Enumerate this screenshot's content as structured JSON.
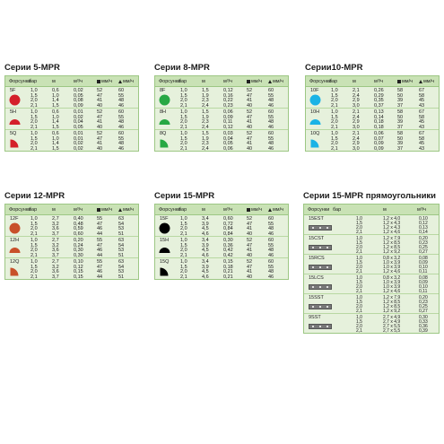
{
  "headers": {
    "nozzle": "Форсунки",
    "bar": "бар",
    "radius": "м",
    "flow": "м³/ч",
    "sq_rate": "мм/ч",
    "tri_rate": "мм/ч",
    "rect_size": "м"
  },
  "colors": {
    "s5": "#d4202a",
    "s8": "#27a844",
    "s10": "#1ab3e6",
    "s12": "#c8502a",
    "s15": "#000000"
  },
  "panels": [
    {
      "title": "Серии 5-MPR",
      "groups": [
        {
          "label": "5F",
          "shape": "full",
          "rows": [
            [
              "1,0",
              "0,6",
              "0,02",
              "52",
              "60"
            ],
            [
              "1,5",
              "1,0",
              "0,05",
              "47",
              "55"
            ],
            [
              "2,0",
              "1,4",
              "0,08",
              "41",
              "48"
            ],
            [
              "2,1",
              "1,5",
              "0,09",
              "40",
              "46"
            ]
          ]
        },
        {
          "label": "5H",
          "shape": "half",
          "rows": [
            [
              "1,0",
              "0,6",
              "0,01",
              "52",
              "60"
            ],
            [
              "1,5",
              "1,0",
              "0,02",
              "47",
              "55"
            ],
            [
              "2,0",
              "1,4",
              "0,04",
              "41",
              "48"
            ],
            [
              "2,1",
              "1,5",
              "0,05",
              "40",
              "46"
            ]
          ]
        },
        {
          "label": "5Q",
          "shape": "quarter",
          "rows": [
            [
              "1,0",
              "0,6",
              "0,01",
              "52",
              "60"
            ],
            [
              "1,5",
              "1,0",
              "0,01",
              "47",
              "55"
            ],
            [
              "2,0",
              "1,4",
              "0,02",
              "41",
              "48"
            ],
            [
              "2,1",
              "1,5",
              "0,02",
              "40",
              "46"
            ]
          ]
        }
      ]
    },
    {
      "title": "Серии 8-MPR",
      "groups": [
        {
          "label": "8F",
          "shape": "full",
          "rows": [
            [
              "1,0",
              "1,5",
              "0,12",
              "52",
              "60"
            ],
            [
              "1,5",
              "1,9",
              "0,16",
              "47",
              "55"
            ],
            [
              "2,0",
              "2,3",
              "0,22",
              "41",
              "48"
            ],
            [
              "2,1",
              "2,4",
              "0,23",
              "40",
              "46"
            ]
          ]
        },
        {
          "label": "8H",
          "shape": "half",
          "rows": [
            [
              "1,0",
              "1,5",
              "0,06",
              "52",
              "60"
            ],
            [
              "1,5",
              "1,9",
              "0,09",
              "47",
              "55"
            ],
            [
              "2,0",
              "2,3",
              "0,11",
              "41",
              "48"
            ],
            [
              "2,1",
              "2,4",
              "0,12",
              "40",
              "46"
            ]
          ]
        },
        {
          "label": "8Q",
          "shape": "quarter",
          "rows": [
            [
              "1,0",
              "1,5",
              "0,03",
              "52",
              "60"
            ],
            [
              "1,5",
              "1,9",
              "0,04",
              "47",
              "55"
            ],
            [
              "2,0",
              "2,3",
              "0,05",
              "41",
              "48"
            ],
            [
              "2,1",
              "2,4",
              "0,06",
              "40",
              "46"
            ]
          ]
        }
      ]
    },
    {
      "title": "Серии10-MPR",
      "groups": [
        {
          "label": "10F",
          "shape": "full",
          "rows": [
            [
              "1,0",
              "2,1",
              "0,26",
              "58",
              "67"
            ],
            [
              "1,5",
              "2,4",
              "0,29",
              "50",
              "58"
            ],
            [
              "2,0",
              "2,9",
              "0,35",
              "39",
              "45"
            ],
            [
              "2,1",
              "3,0",
              "0,37",
              "37",
              "43"
            ]
          ]
        },
        {
          "label": "10H",
          "shape": "half",
          "rows": [
            [
              "1,0",
              "2,1",
              "0,13",
              "58",
              "67"
            ],
            [
              "1,5",
              "2,4",
              "0,14",
              "50",
              "58"
            ],
            [
              "2,0",
              "2,9",
              "0,18",
              "39",
              "45"
            ],
            [
              "2,1",
              "3,0",
              "0,18",
              "37",
              "43"
            ]
          ]
        },
        {
          "label": "10Q",
          "shape": "quarter",
          "rows": [
            [
              "1,0",
              "2,1",
              "0,06",
              "58",
              "67"
            ],
            [
              "1,5",
              "2,4",
              "0,07",
              "50",
              "58"
            ],
            [
              "2,0",
              "2,9",
              "0,09",
              "39",
              "45"
            ],
            [
              "2,1",
              "3,0",
              "0,09",
              "37",
              "43"
            ]
          ]
        }
      ]
    },
    {
      "title": "Серии 12-MPR",
      "groups": [
        {
          "label": "12F",
          "shape": "full",
          "rows": [
            [
              "1,0",
              "2,7",
              "0,40",
              "55",
              "63"
            ],
            [
              "1,5",
              "3,2",
              "0,48",
              "47",
              "54"
            ],
            [
              "2,0",
              "3,6",
              "0,59",
              "46",
              "53"
            ],
            [
              "2,1",
              "3,7",
              "0,60",
              "44",
              "51"
            ]
          ]
        },
        {
          "label": "12H",
          "shape": "half",
          "rows": [
            [
              "1,0",
              "2,7",
              "0,20",
              "55",
              "63"
            ],
            [
              "1,5",
              "3,2",
              "0,24",
              "47",
              "54"
            ],
            [
              "2,0",
              "3,6",
              "0,30",
              "46",
              "53"
            ],
            [
              "2,1",
              "3,7",
              "0,30",
              "44",
              "51"
            ]
          ]
        },
        {
          "label": "12Q",
          "shape": "quarter",
          "rows": [
            [
              "1,0",
              "2,7",
              "0,10",
              "55",
              "63"
            ],
            [
              "1,5",
              "3,2",
              "0,12",
              "47",
              "54"
            ],
            [
              "2,0",
              "3,6",
              "0,15",
              "46",
              "53"
            ],
            [
              "2,1",
              "3,7",
              "0,15",
              "44",
              "51"
            ]
          ]
        }
      ]
    },
    {
      "title": "Серии 15-MPR",
      "groups": [
        {
          "label": "15F",
          "shape": "full",
          "rows": [
            [
              "1,0",
              "3,4",
              "0,60",
              "52",
              "60"
            ],
            [
              "1,5",
              "3,9",
              "0,72",
              "47",
              "55"
            ],
            [
              "2,0",
              "4,5",
              "0,84",
              "41",
              "48"
            ],
            [
              "2,1",
              "4,6",
              "0,84",
              "40",
              "46"
            ]
          ]
        },
        {
          "label": "15H",
          "shape": "half",
          "rows": [
            [
              "1,0",
              "3,4",
              "0,30",
              "52",
              "60"
            ],
            [
              "1,5",
              "3,9",
              "0,36",
              "47",
              "55"
            ],
            [
              "2,0",
              "4,5",
              "0,42",
              "41",
              "48"
            ],
            [
              "2,1",
              "4,6",
              "0,42",
              "40",
              "46"
            ]
          ]
        },
        {
          "label": "15Q",
          "shape": "quarter",
          "rows": [
            [
              "1,0",
              "3,4",
              "0,15",
              "52",
              "60"
            ],
            [
              "1,5",
              "3,9",
              "0,18",
              "47",
              "55"
            ],
            [
              "2,0",
              "4,5",
              "0,21",
              "41",
              "48"
            ],
            [
              "2,1",
              "4,6",
              "0,21",
              "40",
              "46"
            ]
          ]
        }
      ]
    }
  ],
  "rect_panel": {
    "title": "Серии 15-MPR прямоугольники",
    "groups": [
      {
        "label": "15EST",
        "rows": [
          [
            "1,0",
            "1,2 x 4,0",
            "0,10"
          ],
          [
            "1,5",
            "1,2 x 4,3",
            "0,12"
          ],
          [
            "2,0",
            "1,2 x 4,3",
            "0,13"
          ],
          [
            "2,1",
            "1,2 x 4,6",
            "0,14"
          ]
        ]
      },
      {
        "label": "15CST",
        "rows": [
          [
            "1,0",
            "1,2 x 7,9",
            "0,20"
          ],
          [
            "1,5",
            "1,2 x 8,5",
            "0,23"
          ],
          [
            "2,0",
            "1,2 x 8,5",
            "0,25"
          ],
          [
            "2,1",
            "1,2 x 9,2",
            "0,27"
          ]
        ]
      },
      {
        "label": "15RCS",
        "rows": [
          [
            "1,0",
            "0,8 x 3,2",
            "0,08"
          ],
          [
            "1,5",
            "1,0 x 3,9",
            "0,09"
          ],
          [
            "2,0",
            "1,0 x 3,9",
            "0,10"
          ],
          [
            "2,1",
            "1,2 x 4,6",
            "0,11"
          ]
        ]
      },
      {
        "label": "15LCS",
        "rows": [
          [
            "1,0",
            "0,8 x 3,2",
            "0,08"
          ],
          [
            "1,5",
            "1,0 x 3,9",
            "0,09"
          ],
          [
            "2,0",
            "1,0 x 3,9",
            "0,10"
          ],
          [
            "2,1",
            "1,2 x 4,6",
            "0,11"
          ]
        ]
      },
      {
        "label": "15SST",
        "rows": [
          [
            "1,0",
            "1,2 x 7,9",
            "0,20"
          ],
          [
            "1,5",
            "1,2 x 8,5",
            "0,23"
          ],
          [
            "2,0",
            "1,2 x 8,5",
            "0,25"
          ],
          [
            "2,1",
            "1,2 x 9,2",
            "0,27"
          ]
        ]
      },
      {
        "label": "9SST",
        "rows": [
          [
            "1,0",
            "2,7 x 4,9",
            "0,30"
          ],
          [
            "1,5",
            "2,7 x 4,9",
            "0,33"
          ],
          [
            "2,0",
            "2,7 x 5,5",
            "0,36"
          ],
          [
            "2,1",
            "2,7 x 5,5",
            "0,39"
          ]
        ]
      }
    ]
  }
}
